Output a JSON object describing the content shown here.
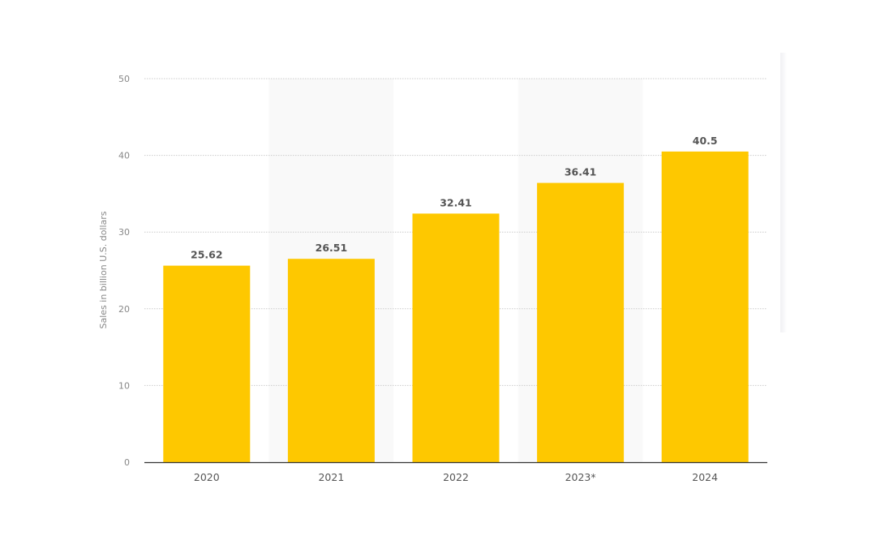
{
  "chart_data": {
    "type": "bar",
    "title": "",
    "xlabel": "",
    "ylabel": "Sales in billion U.S. dollars",
    "categories": [
      "2020",
      "2021",
      "2022",
      "2023*",
      "2024"
    ],
    "values": [
      25.62,
      26.51,
      32.41,
      36.41,
      40.5
    ],
    "data_labels": [
      "25.62",
      "26.51",
      "32.41",
      "36.41",
      "40.5"
    ],
    "ylim": [
      0,
      50
    ],
    "yticks": [
      "0",
      "10",
      "20",
      "30",
      "40",
      "50"
    ],
    "grid": true,
    "legend": "none",
    "colors": {
      "bar": "#fec800",
      "band": "#f9f9f9",
      "grid": "#cccccc",
      "axis": "#333333"
    }
  }
}
